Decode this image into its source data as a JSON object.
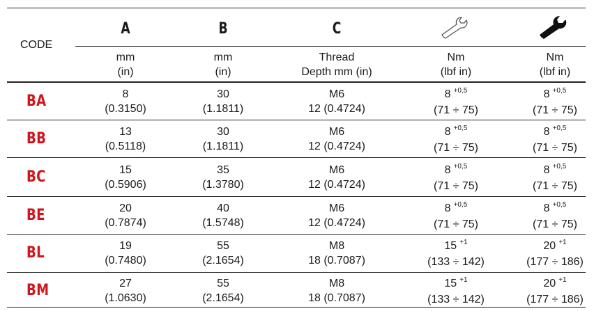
{
  "header": {
    "code_label": "CODE",
    "col_a": {
      "letter": "A",
      "unit1": "mm",
      "unit2": "(in)"
    },
    "col_b": {
      "letter": "B",
      "unit1": "mm",
      "unit2": "(in)"
    },
    "col_c": {
      "letter": "C",
      "unit1": "Thread",
      "unit2": "Depth mm (in)"
    },
    "col_d": {
      "icon": "open-wrench-outline-icon",
      "unit1": "Nm",
      "unit2": "(lbf in)"
    },
    "col_e": {
      "icon": "wrench-solid-icon",
      "unit1": "Nm",
      "unit2": "(lbf in)"
    }
  },
  "code_color": "#d2151c",
  "rows": [
    {
      "code": "BA",
      "a1": "8",
      "a2": "(0.3150)",
      "b1": "30",
      "b2": "(1.1811)",
      "c1": "M6",
      "c2": "12 (0.4724)",
      "d1": "8",
      "d_tol": "+0,5",
      "d2": "(71 ÷ 75)",
      "e1": "8",
      "e_tol": "+0,5",
      "e2": "(71 ÷ 75)"
    },
    {
      "code": "BB",
      "a1": "13",
      "a2": "(0.5118)",
      "b1": "30",
      "b2": "(1.1811)",
      "c1": "M6",
      "c2": "12 (0.4724)",
      "d1": "8",
      "d_tol": "+0,5",
      "d2": "(71 ÷ 75)",
      "e1": "8",
      "e_tol": "+0,5",
      "e2": "(71 ÷ 75)"
    },
    {
      "code": "BC",
      "a1": "15",
      "a2": "(0.5906)",
      "b1": "35",
      "b2": "(1.3780)",
      "c1": "M6",
      "c2": "12 (0.4724)",
      "d1": "8",
      "d_tol": "+0,5",
      "d2": "(71 ÷ 75)",
      "e1": "8",
      "e_tol": "+0,5",
      "e2": "(71 ÷ 75)"
    },
    {
      "code": "BE",
      "a1": "20",
      "a2": "(0.7874)",
      "b1": "40",
      "b2": "(1.5748)",
      "c1": "M6",
      "c2": "12 (0.4724)",
      "d1": "8",
      "d_tol": "+0,5",
      "d2": "(71 ÷ 75)",
      "e1": "8",
      "e_tol": "+0,5",
      "e2": "(71 ÷ 75)"
    },
    {
      "code": "BL",
      "a1": "19",
      "a2": "(0.7480)",
      "b1": "55",
      "b2": "(2.1654)",
      "c1": "M8",
      "c2": "18 (0.7087)",
      "d1": "15",
      "d_tol": "+1",
      "d2": "(133 ÷ 142)",
      "e1": "20",
      "e_tol": "+1",
      "e2": "(177 ÷ 186)"
    },
    {
      "code": "BM",
      "a1": "27",
      "a2": "(1.0630)",
      "b1": "55",
      "b2": "(2.1654)",
      "c1": "M8",
      "c2": "18 (0.7087)",
      "d1": "15",
      "d_tol": "+1",
      "d2": "(133 ÷ 142)",
      "e1": "20",
      "e_tol": "+1",
      "e2": "(177 ÷ 186)"
    }
  ]
}
